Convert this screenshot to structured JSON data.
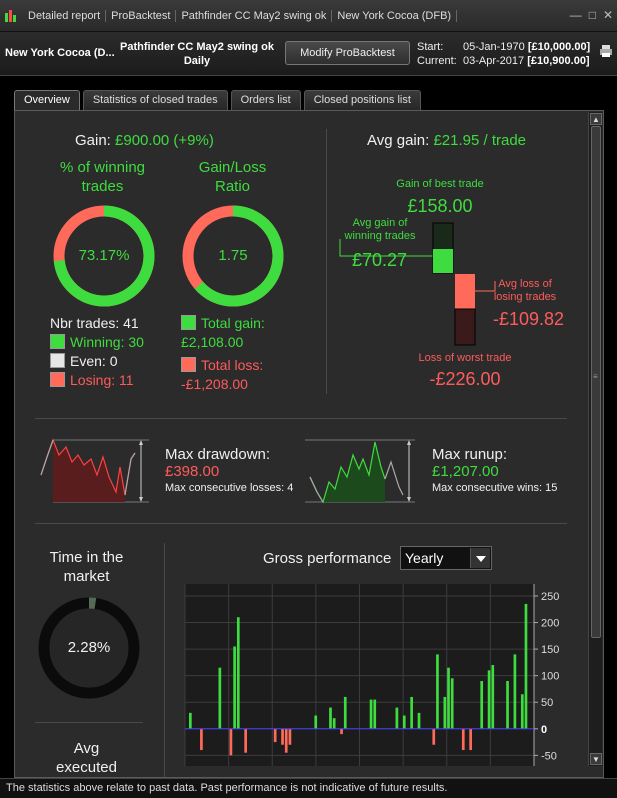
{
  "titlebar": {
    "segments": [
      "Detailed report",
      "ProBacktest",
      "Pathfinder CC May2 swing ok",
      "New York Cocoa (DFB)"
    ]
  },
  "header": {
    "instrument": "New York Cocoa (D...",
    "system_line1": "Pathfinder CC May2 swing ok",
    "system_line2": "Daily",
    "modify_label": "Modify ProBacktest",
    "start_label": "Start:",
    "start_date": "05-Jan-1970",
    "start_capital": "[£10,000.00]",
    "current_label": "Current:",
    "current_date": "03-Apr-2017",
    "current_capital": "[£10,900.00]"
  },
  "tabs": [
    "Overview",
    "Statistics of closed trades",
    "Orders list",
    "Closed positions list"
  ],
  "overview": {
    "gain_label": "Gain:",
    "gain_value": "£900.00 (+9%)",
    "winning_title_1": "% of winning",
    "winning_title_2": "trades",
    "winning_pct": "73.17%",
    "winning_fraction": 0.7317,
    "ratio_title_1": "Gain/Loss",
    "ratio_title_2": "Ratio",
    "ratio_value": "1.75",
    "ratio_fraction": 0.636,
    "nbr_trades": "Nbr trades: 41",
    "winning": "Winning: 30",
    "even": "Even: 0",
    "losing": "Losing: 11",
    "total_gain_label": "Total gain:",
    "total_gain": "£2,108.00",
    "total_loss_label": "Total loss:",
    "total_loss": "-£1,208.00",
    "avg_gain_label": "Avg gain:",
    "avg_gain_value": "£21.95 / trade",
    "best_trade_label": "Gain of best trade",
    "best_trade": "£158.00",
    "avg_win_label_1": "Avg gain of",
    "avg_win_label_2": "winning trades",
    "avg_win": "£70.27",
    "avg_loss_label_1": "Avg loss of",
    "avg_loss_label_2": "losing trades",
    "avg_loss": "-£109.82",
    "worst_trade_label": "Loss of worst trade",
    "worst_trade": "-£226.00",
    "max_drawdown_label": "Max drawdown:",
    "max_drawdown": "£398.00",
    "max_cons_losses": "Max consecutive losses: 4",
    "max_runup_label": "Max runup:",
    "max_runup": "£1,207.00",
    "max_cons_wins": "Max consecutive wins: 15",
    "time_market_1": "Time in the",
    "time_market_2": "market",
    "time_market_value": "2.28%",
    "time_market_fraction": 0.0228,
    "avg_exec_1": "Avg",
    "avg_exec_2": "executed",
    "gross_label": "Gross performance",
    "gross_period": "Yearly"
  },
  "colors": {
    "green": "#3fdc3f",
    "red": "#ff6a5a",
    "bg": "#2b2b2b"
  },
  "chart_data": {
    "type": "bar",
    "title": "Gross performance",
    "period": "Yearly",
    "yticks": [
      250,
      200,
      150,
      100,
      50,
      0,
      -50
    ],
    "ylim": [
      -70,
      265
    ],
    "values": [
      30,
      0,
      0,
      -40,
      0,
      0,
      0,
      0,
      115,
      0,
      0,
      -50,
      155,
      210,
      0,
      -45,
      0,
      0,
      0,
      0,
      0,
      0,
      0,
      -25,
      0,
      -30,
      -45,
      -30,
      0,
      0,
      0,
      0,
      0,
      0,
      25,
      0,
      0,
      0,
      40,
      20,
      0,
      -10,
      60,
      0,
      0,
      0,
      0,
      0,
      0,
      55,
      55,
      0,
      0,
      0,
      0,
      0,
      40,
      0,
      25,
      0,
      60,
      0,
      30,
      0,
      0,
      0,
      -30,
      140,
      0,
      60,
      115,
      95,
      0,
      0,
      -40,
      0,
      -40,
      0,
      0,
      90,
      0,
      110,
      120,
      0,
      0,
      0,
      90,
      0,
      140,
      0,
      65,
      235,
      0
    ]
  },
  "footer": "The statistics above relate to past data. Past performance is not indicative of future results."
}
